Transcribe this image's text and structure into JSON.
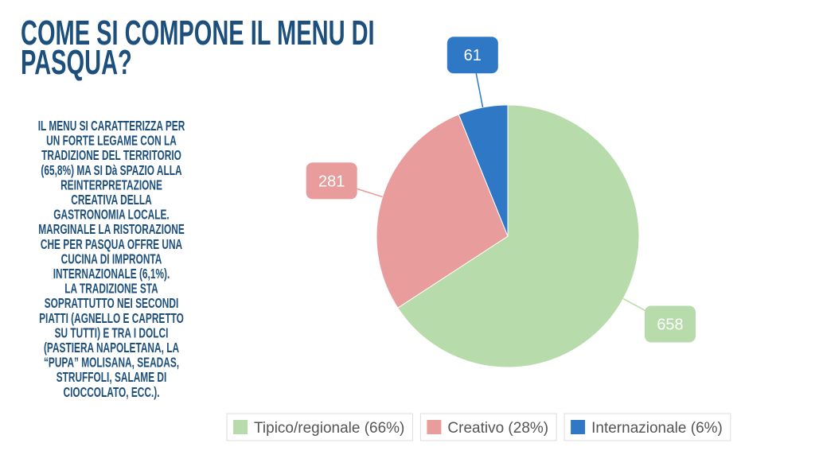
{
  "chart_data": {
    "type": "pie",
    "title": [
      "COME SI COMPONE IL MENU DI",
      "PASQUA?"
    ],
    "annotations": [
      "IL MENU SI CARATTERIZZA PER",
      "UN FORTE LEGAME CON LA",
      "TRADIZIONE DEL TERRITORIO",
      "(65,8%) MA SI Dà SPAZIO ALLA",
      "REINTERPRETAZIONE",
      "CREATIVA DELLA",
      "GASTRONOMIA LOCALE.",
      "MARGINALE LA RISTORAZIONE",
      "CHE PER PASQUA OFFRE UNA",
      "CUCINA DI IMPRONTA",
      "INTERNAZIONALE (6,1%).",
      "LA TRADIZIONE STA",
      "SOPRATTUTTO NEI SECONDI",
      "PIATTI (AGNELLO E CAPRETTO",
      "SU TUTTI) E TRA I DOLCI",
      "(PASTIERA NAPOLETANA, LA",
      "“PUPA” MOLISANA, SEADAS,",
      "STRUFFOLI, SALAME DI",
      "CIOCCOLATO, ECC.)."
    ],
    "categories": [
      "Tipico/regionale (66%)",
      "Creativo (28%)",
      "Internazionale (6%)"
    ],
    "values": [
      658,
      281,
      61
    ],
    "colors": [
      "#b7dbaa",
      "#e89c9c",
      "#2e78c6"
    ],
    "legend": "bottom"
  }
}
